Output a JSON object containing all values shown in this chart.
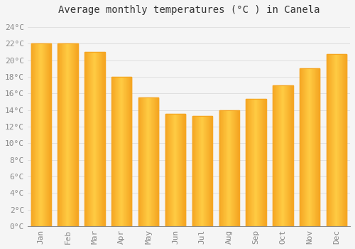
{
  "title": "Average monthly temperatures (°C ) in Canela",
  "months": [
    "Jan",
    "Feb",
    "Mar",
    "Apr",
    "May",
    "Jun",
    "Jul",
    "Aug",
    "Sep",
    "Oct",
    "Nov",
    "Dec"
  ],
  "values": [
    22.0,
    22.0,
    21.0,
    18.0,
    15.5,
    13.5,
    13.3,
    14.0,
    15.3,
    17.0,
    19.0,
    20.7
  ],
  "bar_color_center": "#FFCC44",
  "bar_color_edge": "#F5A623",
  "background_color": "#F5F5F5",
  "plot_bg_color": "#F5F5F5",
  "grid_color": "#DDDDDD",
  "ylim": [
    0,
    25
  ],
  "ytick_step": 2,
  "title_fontsize": 10,
  "tick_fontsize": 8,
  "title_font": "monospace",
  "tick_font": "monospace",
  "tick_color": "#888888",
  "bar_width": 0.75
}
